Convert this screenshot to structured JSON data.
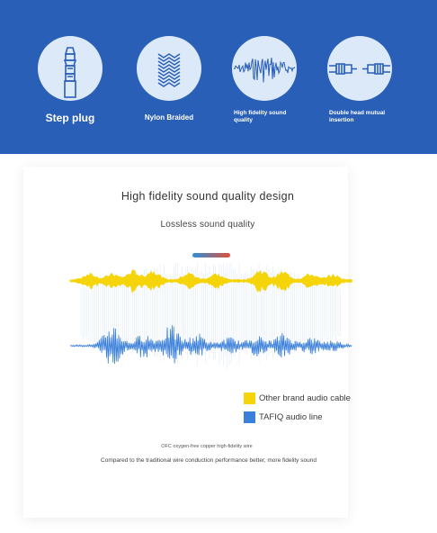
{
  "features": [
    {
      "label": "Step plug",
      "icon": "step-plug-icon"
    },
    {
      "label": "Nylon Braided",
      "icon": "nylon-braid-icon"
    },
    {
      "label": "High fidelity sound quality",
      "icon": "soundwave-icon"
    },
    {
      "label": "Double head mutual insertion",
      "icon": "double-head-connector-icon"
    }
  ],
  "main": {
    "title": "High fidelity sound quality design",
    "subtitle": "Lossless sound quality"
  },
  "legend": [
    {
      "label": "Other brand audio cable",
      "color": "#f5d50a"
    },
    {
      "label": "TAFIQ audio line",
      "color": "#3a7fd9"
    }
  ],
  "notes": {
    "line1": "OFC oxygen-free copper high-fidelity wire",
    "line2": "Compared to the traditional wire conduction performance better, more fidelity sound"
  },
  "colors": {
    "band": "#2a5fb8",
    "icon_bg": "#dce9f8",
    "icon_stroke": "#2a5fb8",
    "yellow_wave": "#f5d50a",
    "blue_wave": "#3a7fd9"
  }
}
